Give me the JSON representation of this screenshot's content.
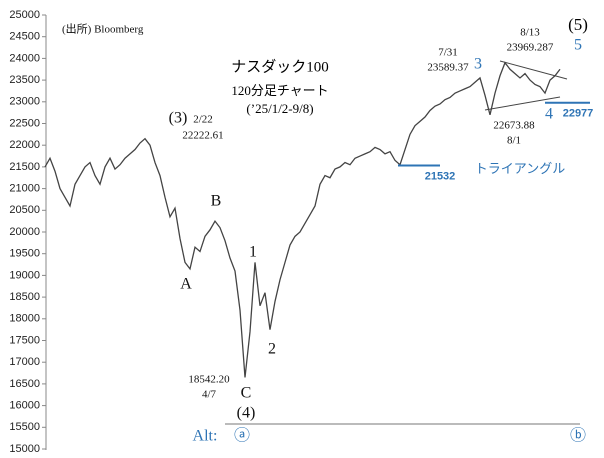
{
  "chart_data": {
    "type": "line",
    "color": "#444444",
    "values": [
      21500,
      21700,
      21400,
      21000,
      20800,
      20600,
      21100,
      21300,
      21500,
      21600,
      21300,
      21100,
      21500,
      21700,
      21450,
      21550,
      21700,
      21800,
      21900,
      22050,
      22150,
      22000,
      21600,
      21300,
      20800,
      20350,
      20550,
      19850,
      19300,
      19150,
      19650,
      19550,
      19900,
      20050,
      20250,
      20100,
      19800,
      19400,
      19100,
      18200,
      16650,
      17700,
      19300,
      18300,
      18600,
      17750,
      18400,
      18900,
      19300,
      19700,
      19900,
      20000,
      20200,
      20400,
      20600,
      21100,
      21300,
      21250,
      21450,
      21500,
      21600,
      21550,
      21700,
      21750,
      21800,
      21850,
      21950,
      21900,
      21800,
      21850,
      21650,
      21550,
      21900,
      22250,
      22450,
      22550,
      22650,
      22800,
      22900,
      22950,
      23050,
      23100,
      23200,
      23250,
      23300,
      23350,
      23450,
      23550,
      23150,
      22700,
      23200,
      23600,
      23900,
      23750,
      23650,
      23550,
      23650,
      23500,
      23400,
      23350,
      23200,
      23500,
      23600,
      23750
    ],
    "ylim": [
      15000,
      25000
    ],
    "yticks": [
      15000,
      15500,
      16000,
      16500,
      17000,
      17500,
      18000,
      18500,
      19000,
      19500,
      20000,
      20500,
      21000,
      21500,
      22000,
      22500,
      23000,
      23500,
      24000,
      24500,
      25000
    ],
    "levels": [
      21532,
      22977
    ],
    "annotations": [
      "(出所) Bloomberg",
      "ナスダック100",
      "120分足チャート",
      "(’25/1/2-9/8)",
      "(3)",
      "2/22",
      "22222.61",
      "A",
      "B",
      "1",
      "2",
      "C",
      "18542.20",
      "4/7",
      "(4)",
      "Alt:",
      "ⓐ",
      "ⓑ",
      "7/31",
      "23589.37",
      "3",
      "8/13",
      "23969.287",
      "(5)",
      "5",
      "4",
      "22673.88",
      "8/1",
      "トライアングル"
    ]
  }
}
